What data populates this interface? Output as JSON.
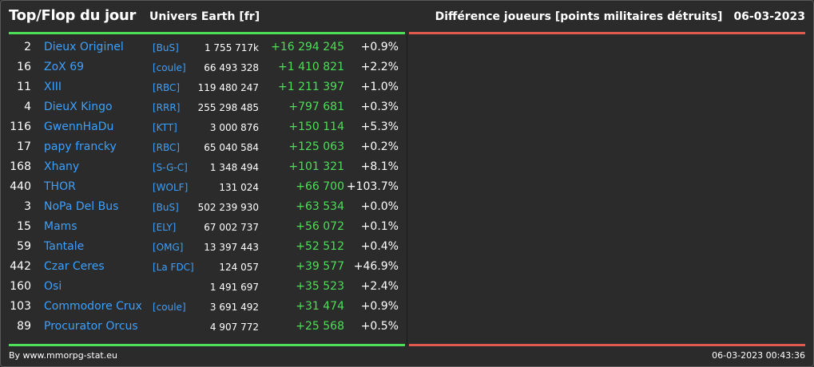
{
  "header": {
    "title": "Top/Flop du jour",
    "universe": "Univers Earth [fr]",
    "metric": "Différence joueurs [points militaires détruits]",
    "date": "06-03-2023"
  },
  "colors": {
    "background": "#2b2b2b",
    "link": "#3aa0ff",
    "positive": "#4cdf57",
    "negative": "#e05a50"
  },
  "rows": [
    {
      "rank": "2",
      "name": "Dieux Originel",
      "alliance": "[BuS]",
      "points": "1 755 717k",
      "diff": "+16 294 245",
      "pct": "+0.9%"
    },
    {
      "rank": "16",
      "name": "ZoX 69",
      "alliance": "[coule]",
      "points": "66 493 328",
      "diff": "+1 410 821",
      "pct": "+2.2%"
    },
    {
      "rank": "11",
      "name": "XIII",
      "alliance": "[RBC]",
      "points": "119 480 247",
      "diff": "+1 211 397",
      "pct": "+1.0%"
    },
    {
      "rank": "4",
      "name": "DieuX Kingo",
      "alliance": "[RRR]",
      "points": "255 298 485",
      "diff": "+797 681",
      "pct": "+0.3%"
    },
    {
      "rank": "116",
      "name": "GwennHaDu",
      "alliance": "[KTT]",
      "points": "3 000 876",
      "diff": "+150 114",
      "pct": "+5.3%"
    },
    {
      "rank": "17",
      "name": "papy francky",
      "alliance": "[RBC]",
      "points": "65 040 584",
      "diff": "+125 063",
      "pct": "+0.2%"
    },
    {
      "rank": "168",
      "name": "Xhany",
      "alliance": "[S-G-C]",
      "points": "1 348 494",
      "diff": "+101 321",
      "pct": "+8.1%"
    },
    {
      "rank": "440",
      "name": "THOR",
      "alliance": "[WOLF]",
      "points": "131 024",
      "diff": "+66 700",
      "pct": "+103.7%"
    },
    {
      "rank": "3",
      "name": "NoPa Del Bus",
      "alliance": "[BuS]",
      "points": "502 239 930",
      "diff": "+63 534",
      "pct": "+0.0%"
    },
    {
      "rank": "15",
      "name": "Mams",
      "alliance": "[ELY]",
      "points": "67 002 737",
      "diff": "+56 072",
      "pct": "+0.1%"
    },
    {
      "rank": "59",
      "name": "Tantale",
      "alliance": "[OMG]",
      "points": "13 397 443",
      "diff": "+52 512",
      "pct": "+0.4%"
    },
    {
      "rank": "442",
      "name": "Czar Ceres",
      "alliance": "[La FDC]",
      "points": "124 057",
      "diff": "+39 577",
      "pct": "+46.9%"
    },
    {
      "rank": "160",
      "name": "Osi",
      "alliance": "",
      "points": "1 491 697",
      "diff": "+35 523",
      "pct": "+2.4%"
    },
    {
      "rank": "103",
      "name": "Commodore Crux",
      "alliance": "[coule]",
      "points": "3 691 492",
      "diff": "+31 474",
      "pct": "+0.9%"
    },
    {
      "rank": "89",
      "name": "Procurator Orcus",
      "alliance": "",
      "points": "4 907 772",
      "diff": "+25 568",
      "pct": "+0.5%"
    }
  ],
  "footer": {
    "credit": "By www.mmorpg-stat.eu",
    "timestamp": "06-03-2023 00:43:36"
  }
}
